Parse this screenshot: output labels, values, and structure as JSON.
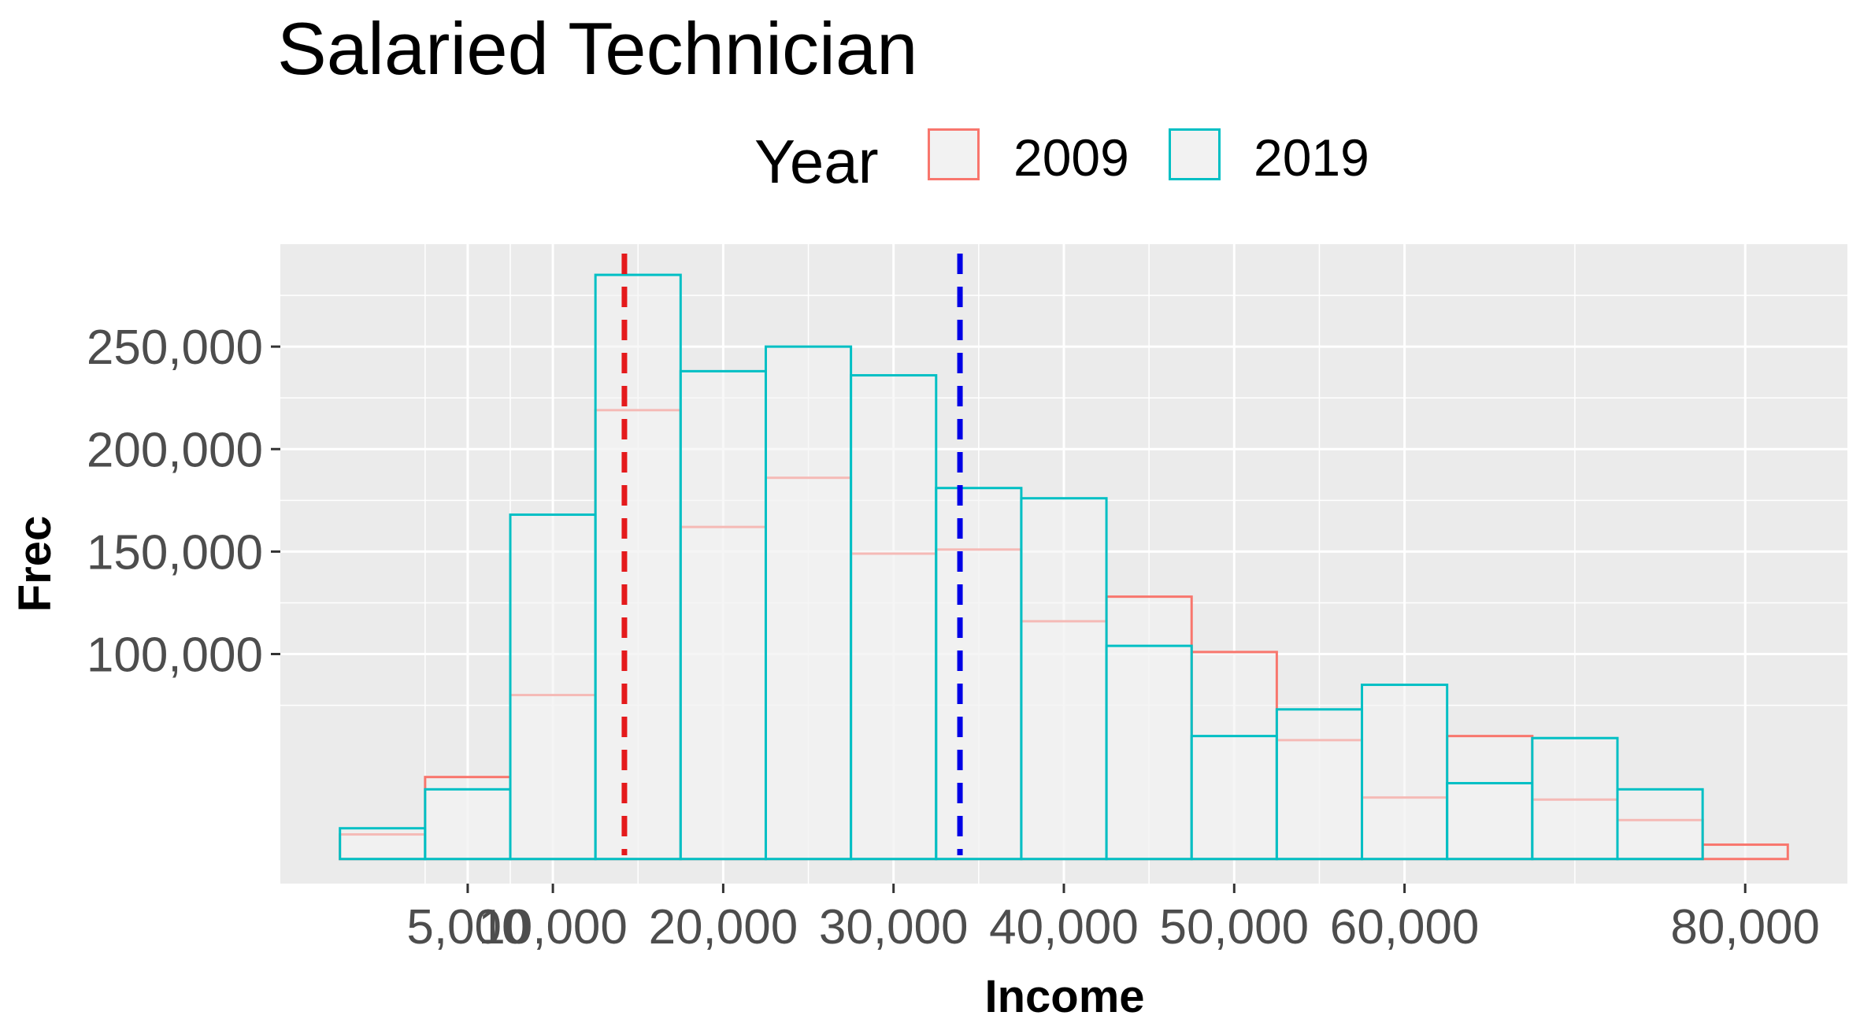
{
  "chart_data": {
    "type": "histogram",
    "title": "Salaried Technician",
    "xlabel": "Income",
    "ylabel": "Frec",
    "xlim": [
      -6000,
      86000
    ],
    "ylim": [
      -12000,
      300000
    ],
    "x_scale": "linear",
    "grid": true,
    "legend": {
      "title": "Year",
      "position": "top",
      "entries": [
        "2009",
        "2019"
      ]
    },
    "x_ticks": [
      {
        "value": 5000,
        "label": "5,000"
      },
      {
        "value": 10000,
        "label": "10,000"
      },
      {
        "value": 20000,
        "label": "20,000"
      },
      {
        "value": 30000,
        "label": "30,000"
      },
      {
        "value": 40000,
        "label": "40,000"
      },
      {
        "value": 50000,
        "label": "50,000"
      },
      {
        "value": 60000,
        "label": "60,000"
      },
      {
        "value": 80000,
        "label": "80,000"
      }
    ],
    "y_ticks": [
      {
        "value": 100000,
        "label": "100,000"
      },
      {
        "value": 150000,
        "label": "150,000"
      },
      {
        "value": 200000,
        "label": "200,000"
      },
      {
        "value": 250000,
        "label": "250,000"
      }
    ],
    "bins": {
      "start": -2500,
      "width": 5000,
      "count": 17
    },
    "series": [
      {
        "name": "2009",
        "color": "#f8766d",
        "values": [
          12000,
          40000,
          80000,
          219000,
          162000,
          186000,
          149000,
          151000,
          116000,
          128000,
          101000,
          58000,
          30000,
          60000,
          29000,
          19000,
          7000
        ]
      },
      {
        "name": "2019",
        "color": "#00bfc4",
        "values": [
          15000,
          34000,
          168000,
          285000,
          238000,
          250000,
          236000,
          181000,
          176000,
          104000,
          60000,
          73000,
          85000,
          37000,
          59000,
          34000,
          0
        ]
      }
    ],
    "vlines": [
      {
        "x": 14200,
        "color": "#e41a1c",
        "style": "dashed"
      },
      {
        "x": 33900,
        "color": "#0000e6",
        "style": "dashed"
      }
    ]
  }
}
